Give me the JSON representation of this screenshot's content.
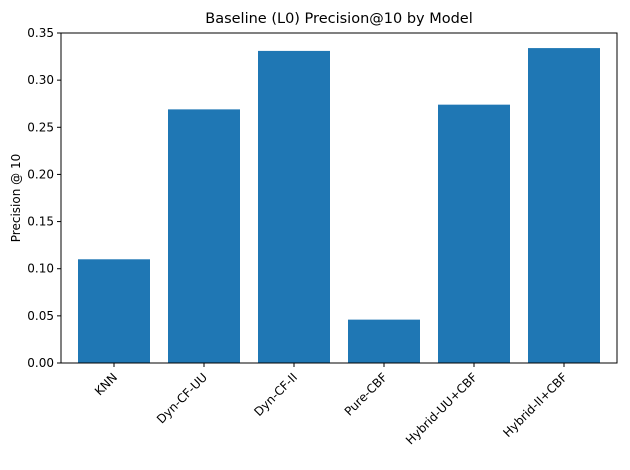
{
  "chart_data": {
    "type": "bar",
    "title": "Baseline (L0) Precision@10 by Model",
    "xlabel": "",
    "ylabel": "Precision @ 10",
    "categories": [
      "KNN",
      "Dyn-CF-UU",
      "Dyn-CF-II",
      "Pure-CBF",
      "Hybrid-UU+CBF",
      "Hybrid-II+CBF"
    ],
    "values": [
      0.11,
      0.269,
      0.331,
      0.046,
      0.274,
      0.334
    ],
    "ylim": [
      0,
      0.35
    ],
    "yticks": [
      "0.00",
      "0.05",
      "0.10",
      "0.15",
      "0.20",
      "0.25",
      "0.30",
      "0.35"
    ],
    "grid": false,
    "legend": "none",
    "bar_color": "#1f77b4"
  }
}
